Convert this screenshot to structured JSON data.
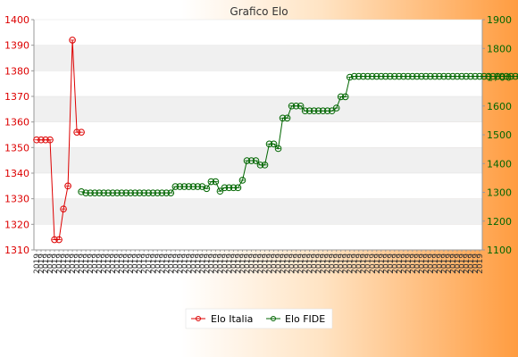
{
  "chart_data": {
    "type": "line",
    "title": "Grafico Elo",
    "left_axis": {
      "ylim": [
        1310,
        1400
      ],
      "ticks": [
        1310,
        1320,
        1330,
        1340,
        1350,
        1360,
        1370,
        1380,
        1390,
        1400
      ],
      "color": "#dd0000"
    },
    "right_axis": {
      "ylim": [
        1100,
        1900
      ],
      "ticks": [
        1100,
        1200,
        1300,
        1400,
        1500,
        1600,
        1700,
        1800,
        1900
      ],
      "color": "#006600"
    },
    "x_tick_label": "2019",
    "x_count": 100,
    "grid": "horizontal alternating bands",
    "legend_position": "bottom",
    "series": [
      {
        "name": "Elo Italia",
        "axis": "left",
        "color": "#dd0000",
        "x": [
          0,
          1,
          2,
          3,
          4,
          5,
          6,
          7,
          8,
          9,
          10
        ],
        "values": [
          1353,
          1353,
          1353,
          1353,
          1314,
          1314,
          1326,
          1335,
          1392,
          1356,
          1356
        ]
      },
      {
        "name": "Elo FIDE",
        "axis": "right",
        "color": "#006600",
        "x_start": 10,
        "values": [
          1302,
          1298,
          1298,
          1298,
          1298,
          1298,
          1298,
          1298,
          1298,
          1298,
          1298,
          1298,
          1298,
          1298,
          1298,
          1298,
          1298,
          1298,
          1298,
          1298,
          1298,
          1320,
          1320,
          1320,
          1320,
          1320,
          1320,
          1320,
          1313,
          1337,
          1337,
          1304,
          1316,
          1316,
          1316,
          1316,
          1342,
          1410,
          1410,
          1410,
          1395,
          1395,
          1468,
          1468,
          1452,
          1558,
          1558,
          1600,
          1600,
          1600,
          1583,
          1583,
          1583,
          1583,
          1583,
          1583,
          1583,
          1593,
          1632,
          1632,
          1700,
          1703,
          1703,
          1703,
          1703,
          1703,
          1703,
          1703,
          1703,
          1703,
          1703,
          1703,
          1703,
          1703,
          1703,
          1703,
          1703,
          1703,
          1703,
          1703,
          1703,
          1703,
          1703,
          1703,
          1703,
          1703,
          1703,
          1703,
          1703,
          1703,
          1703,
          1703,
          1703,
          1703,
          1703,
          1703,
          1703,
          1703,
          1703,
          1703,
          1703,
          1703,
          1703,
          1703,
          1703,
          1703,
          1703
        ]
      }
    ]
  }
}
